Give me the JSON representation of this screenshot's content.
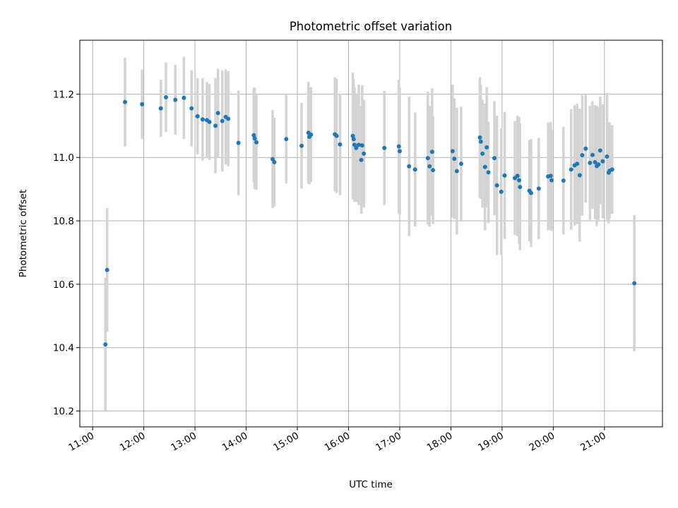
{
  "chart_data": {
    "type": "scatter",
    "title": "Photometric offset variation",
    "xlabel": "UTC time",
    "ylabel": "Photometric offset",
    "xlim": [
      "10:45",
      "22:08"
    ],
    "ylim": [
      10.15,
      11.37
    ],
    "grid": true,
    "x_ticks": [
      "11:00",
      "12:00",
      "13:00",
      "14:00",
      "15:00",
      "16:00",
      "17:00",
      "18:00",
      "19:00",
      "20:00",
      "21:00"
    ],
    "y_ticks": [
      "10.2",
      "10.4",
      "10.6",
      "10.8",
      "11.0",
      "11.2"
    ],
    "colors": {
      "point": "#1f77b4",
      "errorbar": "#d3d3d3",
      "grid": "#b0b0b0"
    },
    "series": [
      {
        "x": [
          "11:15",
          "11:17",
          "11:38",
          "11:58",
          "12:20",
          "12:26",
          "12:37",
          "12:47",
          "12:56",
          "13:03",
          "13:09",
          "13:14",
          "13:17",
          "13:24",
          "13:27",
          "13:32",
          "13:36",
          "13:39",
          "13:51",
          "14:09",
          "14:10",
          "14:12",
          "14:31",
          "14:33",
          "14:47",
          "15:05",
          "15:13",
          "15:14",
          "15:16",
          "15:44",
          "15:46",
          "15:50",
          "16:05",
          "16:06",
          "16:07",
          "16:09",
          "16:12",
          "16:15",
          "16:16",
          "16:18",
          "16:42",
          "16:59",
          "17:00",
          "17:11",
          "17:18",
          "17:33",
          "17:35",
          "17:38",
          "17:39",
          "18:02",
          "18:04",
          "18:07",
          "18:12",
          "18:34",
          "18:35",
          "18:37",
          "18:40",
          "18:42",
          "18:44",
          "18:51",
          "18:54",
          "18:59",
          "19:03",
          "19:15",
          "19:18",
          "19:20",
          "19:21",
          "19:32",
          "19:34",
          "19:43",
          "19:54",
          "19:57",
          "19:58",
          "20:12",
          "20:21",
          "20:25",
          "20:28",
          "20:31",
          "20:34",
          "20:38",
          "20:43",
          "20:46",
          "20:49",
          "20:51",
          "20:53",
          "20:55",
          "20:58",
          "21:03",
          "21:05",
          "21:06",
          "21:09",
          "21:35"
        ],
        "y": [
          10.41,
          10.645,
          11.175,
          11.168,
          11.155,
          11.19,
          11.182,
          11.188,
          11.155,
          11.13,
          11.12,
          11.118,
          11.112,
          11.1,
          11.14,
          11.115,
          11.128,
          11.122,
          11.046,
          11.07,
          11.06,
          11.048,
          10.995,
          10.985,
          11.058,
          11.037,
          11.078,
          11.065,
          11.072,
          11.073,
          11.068,
          11.041,
          11.068,
          11.058,
          11.04,
          11.03,
          11.04,
          10.992,
          11.038,
          11.012,
          11.03,
          11.035,
          11.02,
          10.972,
          10.962,
          10.998,
          10.972,
          11.018,
          10.96,
          11.02,
          10.996,
          10.957,
          10.98,
          11.063,
          11.05,
          11.012,
          10.97,
          11.032,
          10.953,
          10.998,
          10.912,
          10.892,
          10.943,
          10.935,
          10.942,
          10.928,
          10.907,
          10.895,
          10.888,
          10.902,
          10.94,
          10.942,
          10.928,
          10.927,
          10.962,
          10.975,
          10.98,
          10.944,
          11.007,
          11.028,
          10.983,
          11.008,
          10.985,
          10.973,
          10.978,
          11.022,
          10.988,
          11.003,
          10.952,
          10.958,
          10.962,
          10.603
        ],
        "err": [
          0.21,
          0.195,
          0.14,
          0.11,
          0.09,
          0.11,
          0.11,
          0.13,
          0.12,
          0.12,
          0.13,
          0.12,
          0.12,
          0.15,
          0.14,
          0.16,
          0.15,
          0.15,
          0.165,
          0.15,
          0.16,
          0.15,
          0.155,
          0.14,
          0.14,
          0.135,
          0.16,
          0.15,
          0.15,
          0.18,
          0.18,
          0.16,
          0.2,
          0.19,
          0.18,
          0.17,
          0.19,
          0.17,
          0.19,
          0.17,
          0.18,
          0.21,
          0.2,
          0.22,
          0.18,
          0.21,
          0.19,
          0.2,
          0.17,
          0.21,
          0.19,
          0.2,
          0.18,
          0.19,
          0.18,
          0.17,
          0.2,
          0.19,
          0.16,
          0.18,
          0.22,
          0.2,
          0.2,
          0.18,
          0.19,
          0.2,
          0.2,
          0.16,
          0.17,
          0.16,
          0.17,
          0.17,
          0.16,
          0.17,
          0.19,
          0.19,
          0.19,
          0.21,
          0.19,
          0.17,
          0.18,
          0.17,
          0.18,
          0.19,
          0.18,
          0.17,
          0.18,
          0.2,
          0.16,
          0.15,
          0.14,
          0.215
        ]
      }
    ]
  }
}
